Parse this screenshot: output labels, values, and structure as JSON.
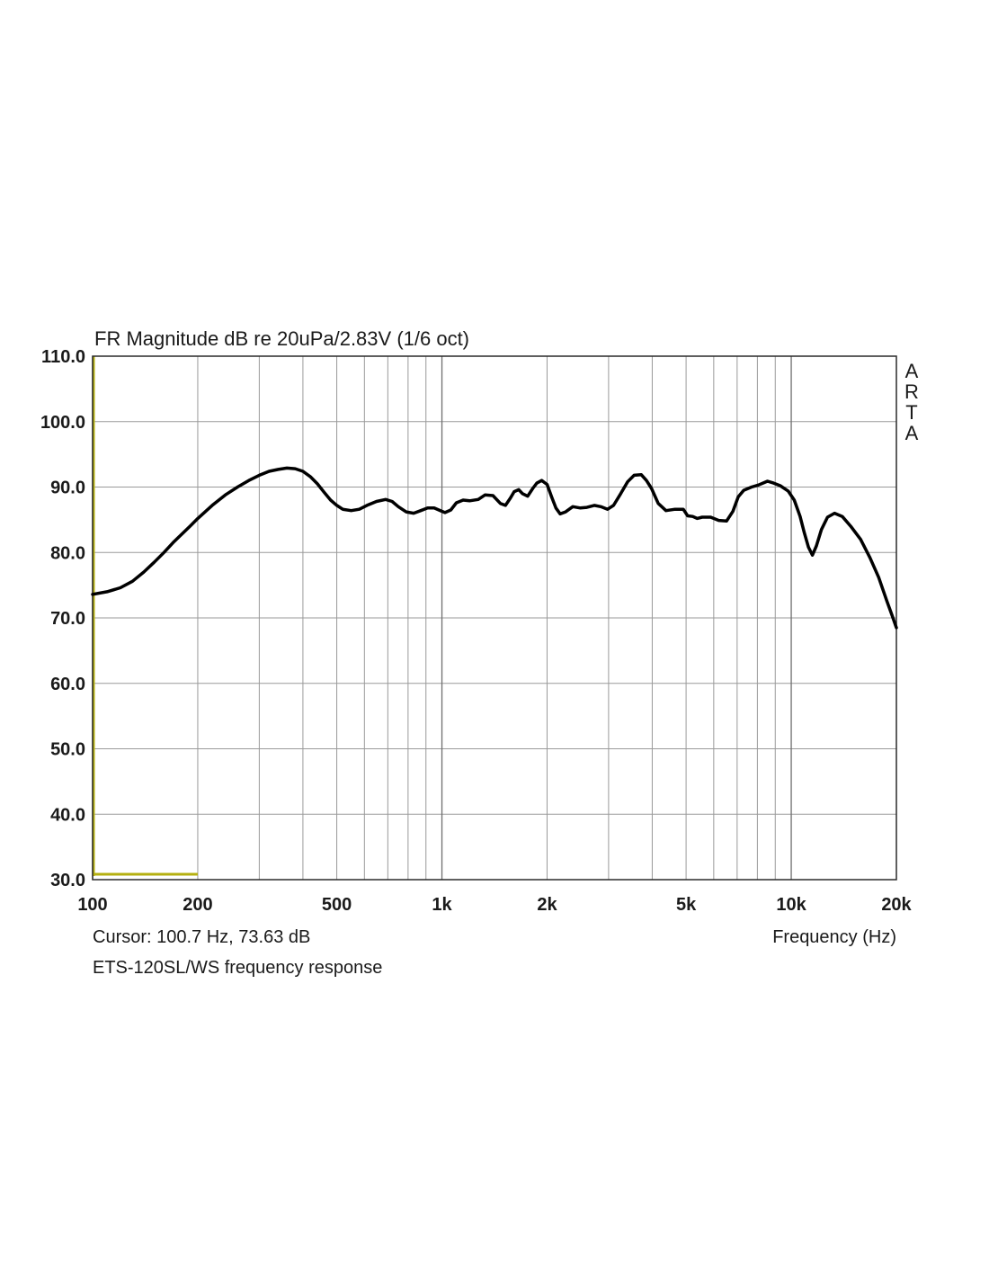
{
  "chart_data": {
    "type": "line",
    "title": "FR Magnitude dB re 20uPa/2.83V (1/6 oct)",
    "xlabel": "Frequency (Hz)",
    "ylabel": "",
    "x_scale": "log",
    "xlim": [
      100,
      20000
    ],
    "ylim": [
      30,
      110
    ],
    "grid": true,
    "y_ticks": [
      "110.0",
      "100.0",
      "90.0",
      "80.0",
      "70.0",
      "60.0",
      "50.0",
      "40.0",
      "30.0"
    ],
    "y_tick_values": [
      110,
      100,
      90,
      80,
      70,
      60,
      50,
      40,
      30
    ],
    "x_ticks": [
      "100",
      "200",
      "500",
      "1k",
      "2k",
      "5k",
      "10k",
      "20k"
    ],
    "x_tick_values": [
      100,
      200,
      500,
      1000,
      2000,
      5000,
      10000,
      20000
    ],
    "cursor_text": "Cursor: 100.7 Hz, 73.63 dB",
    "caption": "ETS-120SL/WS frequency response",
    "brand": "ARTA",
    "series": [
      {
        "color": "#000000",
        "x": [
          100,
          110,
          120,
          130,
          140,
          150,
          160,
          170,
          180,
          190,
          200,
          220,
          240,
          260,
          280,
          300,
          320,
          340,
          360,
          380,
          400,
          420,
          440,
          460,
          480,
          500,
          520,
          550,
          580,
          610,
          650,
          690,
          720,
          750,
          790,
          830,
          870,
          910,
          950,
          990,
          1020,
          1060,
          1100,
          1150,
          1200,
          1270,
          1330,
          1400,
          1470,
          1520,
          1570,
          1610,
          1660,
          1700,
          1760,
          1820,
          1870,
          1930,
          2000,
          2060,
          2120,
          2180,
          2260,
          2370,
          2490,
          2600,
          2730,
          2850,
          2980,
          3100,
          3250,
          3400,
          3550,
          3720,
          3850,
          3980,
          4160,
          4380,
          4650,
          4910,
          5050,
          5220,
          5380,
          5560,
          5880,
          6200,
          6530,
          6810,
          7050,
          7310,
          7700,
          8050,
          8300,
          8550,
          8900,
          9300,
          9800,
          10200,
          10600,
          10900,
          11200,
          11500,
          11800,
          12200,
          12700,
          13300,
          14000,
          14800,
          15800,
          16800,
          17800,
          18800,
          19400,
          20000
        ],
        "y": [
          73.6,
          74.0,
          74.6,
          75.6,
          77.0,
          78.5,
          80.0,
          81.5,
          82.8,
          84.0,
          85.2,
          87.2,
          88.8,
          90.0,
          91.0,
          91.8,
          92.4,
          92.7,
          92.9,
          92.8,
          92.4,
          91.6,
          90.5,
          89.2,
          88.0,
          87.2,
          86.6,
          86.4,
          86.6,
          87.2,
          87.8,
          88.1,
          87.8,
          87.0,
          86.2,
          86.0,
          86.4,
          86.8,
          86.8,
          86.4,
          86.1,
          86.5,
          87.6,
          88.0,
          87.9,
          88.1,
          88.8,
          88.7,
          87.5,
          87.2,
          88.3,
          89.3,
          89.6,
          89.0,
          88.6,
          89.8,
          90.6,
          91.0,
          90.4,
          88.5,
          86.8,
          85.9,
          86.2,
          87.0,
          86.8,
          86.9,
          87.2,
          87.0,
          86.6,
          87.2,
          89.0,
          90.8,
          91.8,
          91.9,
          91.0,
          89.8,
          87.5,
          86.4,
          86.6,
          86.6,
          85.6,
          85.5,
          85.2,
          85.4,
          85.4,
          84.9,
          84.8,
          86.3,
          88.5,
          89.5,
          90.0,
          90.3,
          90.6,
          90.9,
          90.6,
          90.2,
          89.4,
          88.0,
          85.5,
          83.0,
          80.8,
          79.6,
          81.0,
          83.5,
          85.4,
          86.0,
          85.5,
          84.0,
          82.0,
          79.2,
          76.2,
          72.5,
          70.5,
          68.5
        ]
      }
    ]
  }
}
